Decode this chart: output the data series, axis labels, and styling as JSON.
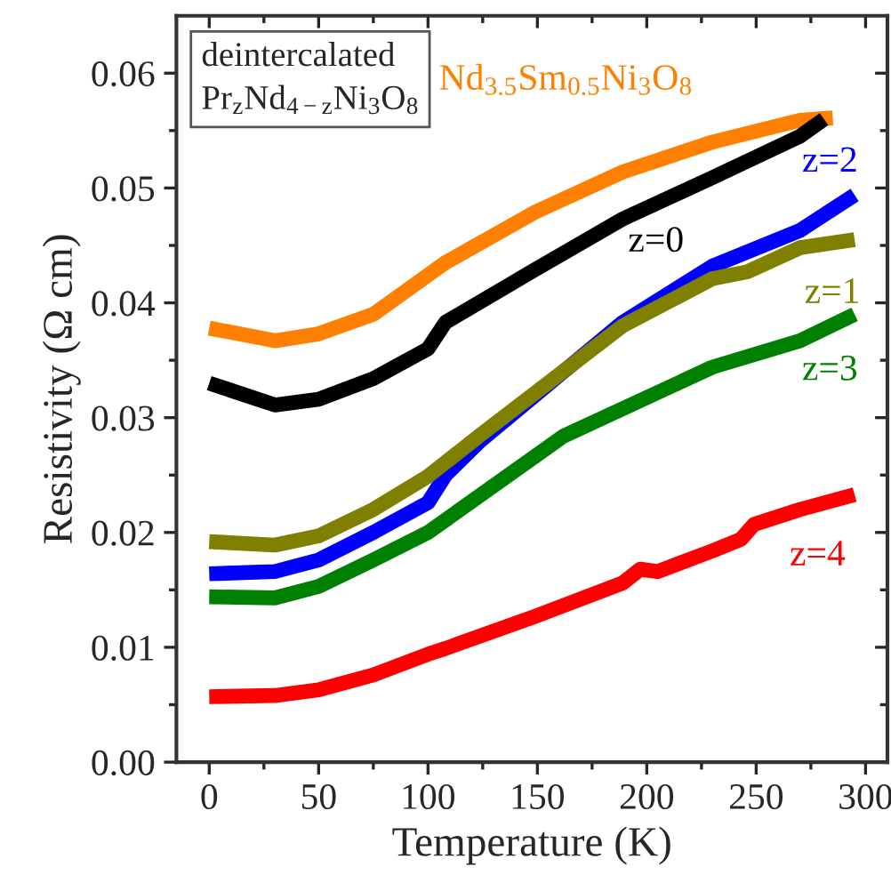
{
  "chart_data": {
    "type": "line",
    "xlabel": "Temperature (K)",
    "ylabel": "Resistivity (Ω cm)",
    "xlim": [
      -15,
      310
    ],
    "ylim": [
      0,
      0.065
    ],
    "xticks": [
      0,
      50,
      100,
      150,
      200,
      250,
      300
    ],
    "yticks": [
      {
        "value": 0,
        "label": "0.00"
      },
      {
        "value": 0.01,
        "label": "0.01"
      },
      {
        "value": 0.02,
        "label": "0.02"
      },
      {
        "value": 0.03,
        "label": "0.03"
      },
      {
        "value": 0.04,
        "label": "0.04"
      },
      {
        "value": 0.05,
        "label": "0.05"
      },
      {
        "value": 0.06,
        "label": "0.06"
      }
    ],
    "grid": false,
    "legend": false,
    "line_style": "solid",
    "marker": "none",
    "series": [
      {
        "name": "Nd$_{3.5}$Sm$_{0.5}$Ni$_{3}$O$_{8}$",
        "color": "#ff8000",
        "x": [
          0,
          30,
          50,
          75,
          108,
          149,
          189,
          230,
          270,
          285
        ],
        "values": [
          0.0378,
          0.0367,
          0.0373,
          0.039,
          0.0435,
          0.0479,
          0.0514,
          0.054,
          0.0559,
          0.0561
        ]
      },
      {
        "name": "z=0",
        "color": "#000000",
        "x": [
          0,
          30,
          50,
          75,
          100,
          108,
          149,
          189,
          230,
          270,
          281
        ],
        "values": [
          0.033,
          0.0311,
          0.0316,
          0.0334,
          0.036,
          0.0383,
          0.0429,
          0.0473,
          0.0509,
          0.0545,
          0.056
        ]
      },
      {
        "name": "z=2",
        "color": "#0000ff",
        "x": [
          0,
          30,
          50,
          75,
          100,
          108,
          124,
          189,
          230,
          270,
          295
        ],
        "values": [
          0.0164,
          0.0166,
          0.0176,
          0.02,
          0.0226,
          0.025,
          0.028,
          0.0383,
          0.0432,
          0.0463,
          0.0494
        ]
      },
      {
        "name": "z=1",
        "color": "#808000",
        "x": [
          0,
          30,
          50,
          75,
          100,
          124,
          189,
          230,
          246,
          270,
          295
        ],
        "values": [
          0.0192,
          0.0189,
          0.0197,
          0.022,
          0.0249,
          0.0285,
          0.038,
          0.0421,
          0.0427,
          0.0448,
          0.0455
        ]
      },
      {
        "name": "z=3",
        "color": "#008000",
        "x": [
          0,
          30,
          50,
          75,
          100,
          162,
          230,
          270,
          295
        ],
        "values": [
          0.0144,
          0.0143,
          0.0153,
          0.0176,
          0.02,
          0.0284,
          0.0344,
          0.0367,
          0.039
        ]
      },
      {
        "name": "z=4",
        "color": "#ff0000",
        "x": [
          0,
          30,
          50,
          75,
          100,
          108,
          149,
          189,
          197,
          205,
          230,
          243,
          249,
          270,
          295
        ],
        "values": [
          0.0057,
          0.0058,
          0.0063,
          0.0076,
          0.0094,
          0.0099,
          0.0127,
          0.0156,
          0.0168,
          0.0166,
          0.0184,
          0.0194,
          0.0207,
          0.022,
          0.0233
        ]
      }
    ],
    "annotations": [
      "deintercalated\nPr$_{z}$Nd$_{4−z}$Ni$_{3}$O$_{8}$"
    ]
  }
}
